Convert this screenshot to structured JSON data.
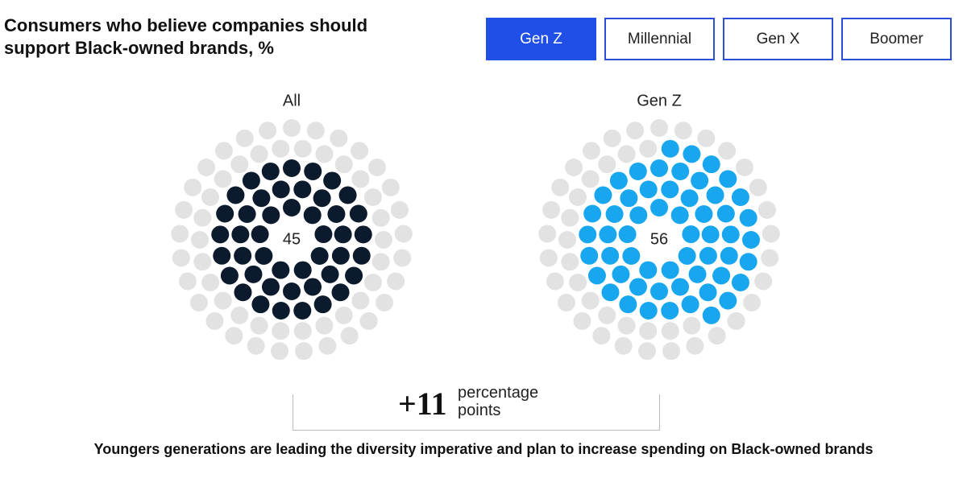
{
  "title": "Consumers who believe companies should support Black-owned brands, %",
  "tabs": [
    "Gen Z",
    "Millennial",
    "Gen X",
    "Boomer"
  ],
  "active_tab": 0,
  "chart_data": [
    {
      "type": "dot",
      "title": "All",
      "value": 45,
      "color": "#0b1a2c",
      "empty_color": "#e2e2e2"
    },
    {
      "type": "dot",
      "title": "Gen Z",
      "value": 56,
      "color": "#18a7ef",
      "empty_color": "#e2e2e2"
    }
  ],
  "difference": {
    "value": {
      "value": 11,
      "label": "+11"
    },
    "unit": "percentage points"
  },
  "caption": "Youngers generations are leading the diversity imperative and plan to increase spending on Black-owned brands"
}
